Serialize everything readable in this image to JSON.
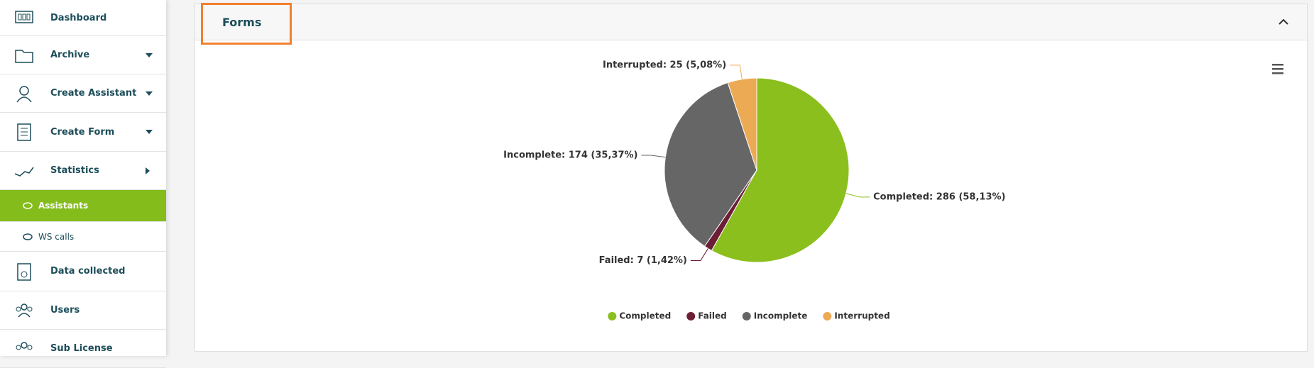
{
  "sidebar": {
    "items": [
      {
        "label": "Dashboard"
      },
      {
        "label": "Archive"
      },
      {
        "label": "Create Assistant"
      },
      {
        "label": "Create Form"
      },
      {
        "label": "Statistics"
      },
      {
        "label": "Assistants"
      },
      {
        "label": "WS calls"
      },
      {
        "label": "Data collected"
      },
      {
        "label": "Users"
      },
      {
        "label": "Sub License"
      }
    ]
  },
  "panel": {
    "title": "Forms"
  },
  "chart_data": {
    "type": "pie",
    "categories": [
      "Completed",
      "Failed",
      "Incomplete",
      "Interrupted"
    ],
    "values": [
      286,
      7,
      174,
      25
    ],
    "value_labels": [
      "Completed: 286 (58,13%)",
      "Failed: 7 (1,42%)",
      "Incomplete: 174 (35,37%)",
      "Interrupted: 25 (5,08%)"
    ],
    "colors": [
      "#8abf1e",
      "#6b1e35",
      "#666666",
      "#ecaa55"
    ]
  }
}
